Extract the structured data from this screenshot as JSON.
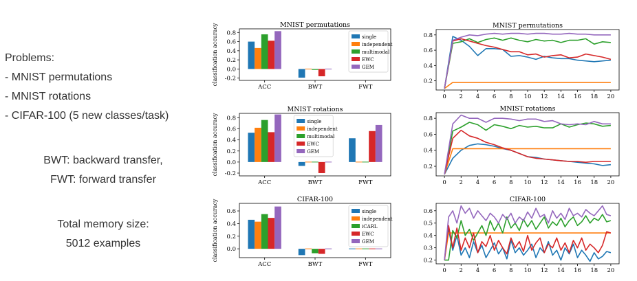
{
  "left_text": {
    "problems_heading": "Problems:",
    "problems": [
      "- MNIST permutations",
      "- MNIST rotations",
      "- CIFAR-100 (5 new classes/task)"
    ],
    "bwt_def": "BWT: backward transfer,",
    "fwt_def": "FWT: forward transfer",
    "memory_label": "Total memory size:",
    "memory_value": "5012 examples"
  },
  "chart_data": [
    {
      "type": "bar",
      "title": "MNIST permutations",
      "ylabel": "classification accuracy",
      "categories": [
        "ACC",
        "BWT",
        "FWT"
      ],
      "ylim": [
        -0.25,
        0.88
      ],
      "yticks": [
        -0.2,
        0.0,
        0.2,
        0.4,
        0.6,
        0.8
      ],
      "legend": "right",
      "series": [
        {
          "name": "single",
          "color": "#1f77b4",
          "values": [
            0.6,
            -0.19,
            0.0
          ]
        },
        {
          "name": "independent",
          "color": "#ff7f0e",
          "values": [
            0.46,
            0.0,
            0.0
          ]
        },
        {
          "name": "multimodal",
          "color": "#2ca02c",
          "values": [
            0.76,
            -0.02,
            0.0
          ]
        },
        {
          "name": "EWC",
          "color": "#d62728",
          "values": [
            0.62,
            -0.16,
            0.0
          ]
        },
        {
          "name": "GEM",
          "color": "#9467bd",
          "values": [
            0.83,
            0.01,
            0.0
          ]
        }
      ]
    },
    {
      "type": "line",
      "title": "MNIST permutations",
      "xlim": [
        0,
        20
      ],
      "ylim": [
        0.08,
        0.87
      ],
      "xticks": [
        0,
        2,
        4,
        6,
        8,
        10,
        12,
        14,
        16,
        18,
        20
      ],
      "yticks": [
        0.2,
        0.4,
        0.6,
        0.8
      ],
      "x": [
        0,
        1,
        2,
        3,
        4,
        5,
        6,
        7,
        8,
        9,
        10,
        11,
        12,
        13,
        14,
        15,
        16,
        17,
        18,
        19,
        20
      ],
      "series": [
        {
          "color": "#1f77b4",
          "values": [
            0.1,
            0.78,
            0.73,
            0.65,
            0.53,
            0.62,
            0.62,
            0.61,
            0.52,
            0.53,
            0.51,
            0.48,
            0.52,
            0.5,
            0.49,
            0.49,
            0.47,
            0.46,
            0.45,
            0.46,
            0.47
          ]
        },
        {
          "color": "#ff7f0e",
          "values": [
            0.1,
            0.18,
            0.18,
            0.18,
            0.18,
            0.18,
            0.18,
            0.18,
            0.18,
            0.18,
            0.18,
            0.18,
            0.18,
            0.18,
            0.18,
            0.18,
            0.18,
            0.18,
            0.18,
            0.18,
            0.18
          ]
        },
        {
          "color": "#2ca02c",
          "values": [
            0.1,
            0.69,
            0.71,
            0.75,
            0.7,
            0.74,
            0.76,
            0.73,
            0.76,
            0.73,
            0.71,
            0.74,
            0.72,
            0.73,
            0.7,
            0.73,
            0.73,
            0.75,
            0.68,
            0.71,
            0.7
          ]
        },
        {
          "color": "#d62728",
          "values": [
            0.1,
            0.72,
            0.75,
            0.72,
            0.69,
            0.66,
            0.64,
            0.61,
            0.58,
            0.58,
            0.54,
            0.55,
            0.51,
            0.53,
            0.54,
            0.5,
            0.51,
            0.55,
            0.53,
            0.51,
            0.48
          ]
        },
        {
          "color": "#9467bd",
          "values": [
            0.1,
            0.73,
            0.77,
            0.8,
            0.79,
            0.81,
            0.82,
            0.81,
            0.82,
            0.82,
            0.81,
            0.82,
            0.82,
            0.81,
            0.81,
            0.82,
            0.81,
            0.81,
            0.8,
            0.8,
            0.8
          ]
        }
      ]
    },
    {
      "type": "bar",
      "title": "MNIST rotations",
      "ylabel": "classification accuracy",
      "categories": [
        "ACC",
        "BWT",
        "FWT"
      ],
      "ylim": [
        -0.25,
        0.88
      ],
      "yticks": [
        -0.2,
        0.0,
        0.2,
        0.4,
        0.6,
        0.8
      ],
      "legend": "top-center",
      "series": [
        {
          "name": "single",
          "color": "#1f77b4",
          "values": [
            0.53,
            -0.07,
            0.43
          ]
        },
        {
          "name": "independent",
          "color": "#ff7f0e",
          "values": [
            0.62,
            0.0,
            0.0
          ]
        },
        {
          "name": "multimodal",
          "color": "#2ca02c",
          "values": [
            0.76,
            -0.01,
            0.01
          ]
        },
        {
          "name": "EWC",
          "color": "#d62728",
          "values": [
            0.54,
            -0.2,
            0.56
          ]
        },
        {
          "name": "GEM",
          "color": "#9467bd",
          "values": [
            0.86,
            0.0,
            0.67
          ]
        }
      ]
    },
    {
      "type": "line",
      "title": "MNIST rotations",
      "xlim": [
        0,
        20
      ],
      "ylim": [
        0.08,
        0.87
      ],
      "xticks": [
        0,
        2,
        4,
        6,
        8,
        10,
        12,
        14,
        16,
        18,
        20
      ],
      "yticks": [
        0.2,
        0.4,
        0.6,
        0.8
      ],
      "x": [
        0,
        1,
        2,
        3,
        4,
        5,
        6,
        7,
        8,
        9,
        10,
        11,
        12,
        13,
        14,
        15,
        16,
        17,
        18,
        19,
        20
      ],
      "series": [
        {
          "color": "#1f77b4",
          "values": [
            0.1,
            0.3,
            0.4,
            0.46,
            0.48,
            0.47,
            0.45,
            0.42,
            0.4,
            0.36,
            0.32,
            0.31,
            0.29,
            0.28,
            0.27,
            0.26,
            0.25,
            0.24,
            0.23,
            0.21,
            0.22
          ]
        },
        {
          "color": "#ff7f0e",
          "values": [
            0.1,
            0.42,
            0.42,
            0.42,
            0.42,
            0.42,
            0.42,
            0.42,
            0.42,
            0.42,
            0.42,
            0.42,
            0.42,
            0.42,
            0.42,
            0.42,
            0.42,
            0.42,
            0.42,
            0.42,
            0.42
          ]
        },
        {
          "color": "#2ca02c",
          "values": [
            0.1,
            0.64,
            0.69,
            0.75,
            0.72,
            0.65,
            0.72,
            0.7,
            0.67,
            0.71,
            0.69,
            0.7,
            0.68,
            0.68,
            0.73,
            0.69,
            0.72,
            0.74,
            0.73,
            0.7,
            0.71
          ]
        },
        {
          "color": "#d62728",
          "values": [
            0.1,
            0.55,
            0.65,
            0.58,
            0.55,
            0.5,
            0.47,
            0.43,
            0.4,
            0.36,
            0.32,
            0.3,
            0.29,
            0.28,
            0.27,
            0.26,
            0.26,
            0.25,
            0.26,
            0.26,
            0.26
          ]
        },
        {
          "color": "#9467bd",
          "values": [
            0.1,
            0.73,
            0.84,
            0.8,
            0.8,
            0.75,
            0.8,
            0.8,
            0.79,
            0.77,
            0.79,
            0.79,
            0.76,
            0.77,
            0.73,
            0.72,
            0.73,
            0.72,
            0.76,
            0.73,
            0.73
          ]
        }
      ]
    },
    {
      "type": "bar",
      "title": "CIFAR-100",
      "ylabel": "classification accuracy",
      "categories": [
        "ACC",
        "BWT",
        "FWT"
      ],
      "ylim": [
        -0.14,
        0.72
      ],
      "yticks": [
        0.0,
        0.2,
        0.4,
        0.6
      ],
      "legend": "right",
      "series": [
        {
          "name": "single",
          "color": "#1f77b4",
          "values": [
            0.46,
            -0.1,
            0.0
          ]
        },
        {
          "name": "independent",
          "color": "#ff7f0e",
          "values": [
            0.43,
            0.0,
            0.0
          ]
        },
        {
          "name": "iCARL",
          "color": "#2ca02c",
          "values": [
            0.55,
            -0.07,
            0.0
          ]
        },
        {
          "name": "EWC",
          "color": "#d62728",
          "values": [
            0.49,
            -0.08,
            0.0
          ]
        },
        {
          "name": "GEM",
          "color": "#9467bd",
          "values": [
            0.67,
            0.0,
            0.0
          ]
        }
      ]
    },
    {
      "type": "line",
      "title": "CIFAR-100",
      "xlim": [
        0,
        20
      ],
      "ylim": [
        0.17,
        0.66
      ],
      "xticks": [
        0,
        2,
        4,
        6,
        8,
        10,
        12,
        14,
        16,
        18,
        20
      ],
      "yticks": [
        0.2,
        0.3,
        0.4,
        0.5,
        0.6
      ],
      "x": [
        0.0,
        0.5,
        1.0,
        1.5,
        2.0,
        2.5,
        3.0,
        3.5,
        4.0,
        4.5,
        5.0,
        5.5,
        6.0,
        6.5,
        7.0,
        7.5,
        8.0,
        8.5,
        9.0,
        9.5,
        10.0,
        10.5,
        11.0,
        11.5,
        12.0,
        12.5,
        13.0,
        13.5,
        14.0,
        14.5,
        15.0,
        15.5,
        16.0,
        16.5,
        17.0,
        17.5,
        18.0,
        18.5,
        19.0,
        19.5,
        20.0
      ],
      "series": [
        {
          "color": "#1f77b4",
          "values": [
            0.2,
            0.45,
            0.28,
            0.4,
            0.24,
            0.3,
            0.22,
            0.35,
            0.26,
            0.32,
            0.22,
            0.28,
            0.34,
            0.25,
            0.3,
            0.21,
            0.36,
            0.26,
            0.3,
            0.24,
            0.28,
            0.33,
            0.22,
            0.3,
            0.26,
            0.35,
            0.24,
            0.28,
            0.2,
            0.3,
            0.25,
            0.33,
            0.22,
            0.28,
            0.24,
            0.19,
            0.26,
            0.21,
            0.23,
            0.27,
            0.26
          ]
        },
        {
          "color": "#ff7f0e",
          "values": [
            0.2,
            0.42,
            0.42,
            0.42,
            0.42,
            0.42,
            0.42,
            0.42,
            0.42,
            0.42,
            0.42,
            0.42,
            0.42,
            0.42,
            0.42,
            0.42,
            0.42,
            0.42,
            0.42,
            0.42,
            0.42,
            0.42,
            0.42,
            0.42,
            0.42,
            0.42,
            0.42,
            0.42,
            0.42,
            0.42,
            0.42,
            0.42,
            0.42,
            0.42,
            0.42,
            0.42,
            0.42,
            0.42,
            0.42,
            0.42,
            0.42
          ]
        },
        {
          "color": "#2ca02c",
          "values": [
            0.2,
            0.2,
            0.44,
            0.38,
            0.52,
            0.4,
            0.45,
            0.36,
            0.42,
            0.48,
            0.4,
            0.52,
            0.44,
            0.5,
            0.42,
            0.55,
            0.46,
            0.5,
            0.44,
            0.53,
            0.47,
            0.52,
            0.45,
            0.5,
            0.55,
            0.46,
            0.51,
            0.48,
            0.54,
            0.47,
            0.52,
            0.55,
            0.48,
            0.51,
            0.56,
            0.5,
            0.54,
            0.52,
            0.57,
            0.51,
            0.52
          ]
        },
        {
          "color": "#d62728",
          "values": [
            0.2,
            0.48,
            0.3,
            0.46,
            0.28,
            0.38,
            0.3,
            0.42,
            0.26,
            0.35,
            0.31,
            0.4,
            0.28,
            0.36,
            0.3,
            0.25,
            0.38,
            0.3,
            0.35,
            0.27,
            0.4,
            0.28,
            0.34,
            0.38,
            0.26,
            0.33,
            0.3,
            0.38,
            0.28,
            0.34,
            0.26,
            0.36,
            0.3,
            0.38,
            0.28,
            0.33,
            0.3,
            0.26,
            0.32,
            0.43,
            0.42
          ]
        },
        {
          "color": "#9467bd",
          "values": [
            0.2,
            0.55,
            0.6,
            0.5,
            0.64,
            0.58,
            0.62,
            0.54,
            0.6,
            0.56,
            0.52,
            0.58,
            0.55,
            0.5,
            0.57,
            0.53,
            0.58,
            0.5,
            0.55,
            0.52,
            0.59,
            0.54,
            0.62,
            0.55,
            0.57,
            0.5,
            0.6,
            0.54,
            0.58,
            0.53,
            0.62,
            0.56,
            0.58,
            0.55,
            0.61,
            0.58,
            0.56,
            0.6,
            0.64,
            0.57,
            0.56
          ]
        }
      ]
    }
  ]
}
